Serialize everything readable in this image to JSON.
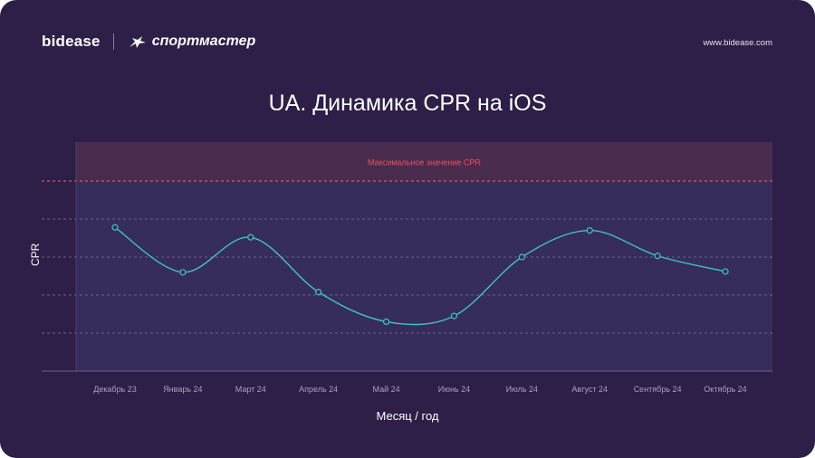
{
  "header": {
    "logo_bidease": "bidease",
    "logo_sportmaster": "спортмастер",
    "website": "www.bidease.com"
  },
  "colors": {
    "background": "#2d1f47",
    "plot_band": "#372d5c",
    "max_band": "#4a2c4e",
    "line": "#3fc4be",
    "max_line": "#e8525a",
    "grid": "#6a5f8a"
  },
  "chart_data": {
    "type": "line",
    "title": "UA. Динамика CPR на iOS",
    "xlabel": "Месяц / год",
    "ylabel": "CPR",
    "categories": [
      "Декабрь 23",
      "Январь 24",
      "Март 24",
      "Апрель 24",
      "Май 24",
      "Июнь 24",
      "Июль 24",
      "Август 24",
      "Сентябрь 24",
      "Октябрь 24"
    ],
    "series": [
      {
        "values": [
          3.78,
          2.6,
          3.52,
          2.08,
          1.3,
          1.45,
          3.0,
          3.7,
          3.03,
          2.62
        ]
      }
    ],
    "ylim": [
      0,
      5
    ],
    "y_ticks": [
      0,
      1,
      2,
      3,
      4,
      5
    ],
    "y_tick_labels_shown": false,
    "max_value": 5,
    "max_label": "Максимальное значение CPR",
    "grid": true,
    "smooth": true
  }
}
